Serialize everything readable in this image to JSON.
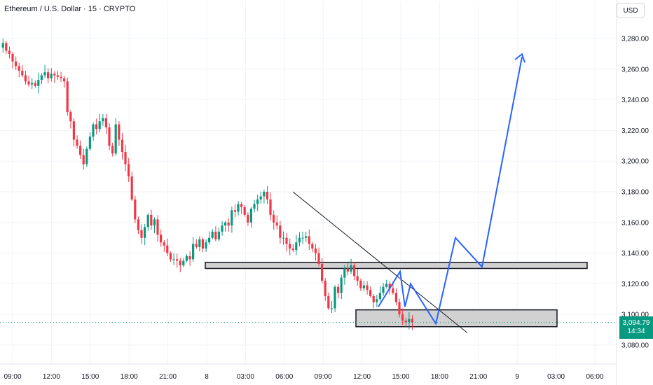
{
  "header": {
    "title": "Ethereum / U.S. Dollar · 15 · CRYPTO"
  },
  "currency_button": "USD",
  "price_tag": {
    "price": "3,094.79",
    "countdown": "14:34"
  },
  "colors": {
    "up": "#089981",
    "down": "#f23645",
    "projection": "#2962ff",
    "zone_fill": "#d1d1d1",
    "trendline": "#131722",
    "grid": "#f0f3fa"
  },
  "chart_data": {
    "type": "candlestick",
    "symbol": "ETHUSD",
    "interval": "15",
    "y_range": [
      3070,
      3295
    ],
    "y_ticks": [
      3080,
      3100,
      3120,
      3140,
      3160,
      3180,
      3200,
      3220,
      3240,
      3260,
      3280
    ],
    "y_tick_labels": [
      "3,080.00",
      "3,100.00",
      "3,120.00",
      "3,140.00",
      "3,160.00",
      "3,180.00",
      "3,200.00",
      "3,220.00",
      "3,240.00",
      "3,260.00",
      "3,280.00"
    ],
    "x_tick_labels": [
      "09:00",
      "12:00",
      "15:00",
      "18:00",
      "21:00",
      "8",
      "03:00",
      "06:00",
      "09:00",
      "12:00",
      "15:00",
      "18:00",
      "21:00",
      "9",
      "03:00",
      "06:00"
    ],
    "last_price": 3094.79,
    "bars_per_label": 12,
    "closes": [
      3277,
      3272,
      3270,
      3265,
      3262,
      3259,
      3256,
      3252,
      3250,
      3251,
      3249,
      3253,
      3256,
      3258,
      3254,
      3257,
      3256,
      3255,
      3254,
      3252,
      3232,
      3226,
      3214,
      3210,
      3204,
      3198,
      3208,
      3216,
      3224,
      3221,
      3226,
      3228,
      3222,
      3210,
      3205,
      3224,
      3214,
      3206,
      3198,
      3190,
      3175,
      3162,
      3155,
      3150,
      3157,
      3165,
      3158,
      3162,
      3152,
      3147,
      3145,
      3140,
      3136,
      3136,
      3135,
      3132,
      3135,
      3138,
      3136,
      3146,
      3144,
      3149,
      3143,
      3147,
      3150,
      3154,
      3149,
      3154,
      3158,
      3160,
      3158,
      3168,
      3167,
      3172,
      3170,
      3165,
      3160,
      3169,
      3172,
      3175,
      3177,
      3180,
      3175,
      3165,
      3160,
      3158,
      3150,
      3150,
      3146,
      3143,
      3142,
      3147,
      3150,
      3150,
      3151,
      3146,
      3143,
      3140,
      3133,
      3122,
      3112,
      3104,
      3104,
      3118,
      3114,
      3124,
      3130,
      3128,
      3132,
      3125,
      3122,
      3117,
      3119,
      3116,
      3112,
      3108,
      3110,
      3114,
      3118,
      3120,
      3117,
      3114,
      3108,
      3100,
      3096,
      3095,
      3097,
      3094.79
    ],
    "annotations": {
      "resistance_zone": [
        3130,
        3134
      ],
      "support_zone": [
        3092,
        3103
      ],
      "trendline": [
        [
          3180,
          3088
        ]
      ],
      "projection_path": [
        3105,
        3128,
        3105,
        3120,
        3094,
        3150,
        3131,
        3268
      ]
    }
  }
}
